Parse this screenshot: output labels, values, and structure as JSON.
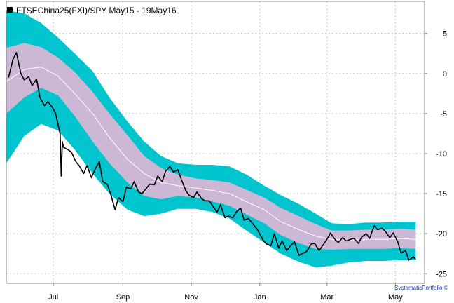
{
  "chart_data": {
    "type": "line",
    "title": "FTSEChina25(FXI)/SPY May15 - 19May16",
    "credit": "SystematicPortfolio ©",
    "colors": {
      "outer_band": "#00c5cf",
      "inner_band": "#ccb8d4",
      "median_line": "#ffffff",
      "price_line": "#000000",
      "grid": "#c8c8c8"
    },
    "x_ticks": [
      "Jul",
      "Sep",
      "Nov",
      "Jan",
      "Mar",
      "May"
    ],
    "x_tick_dates": [
      "2015-07-01",
      "2015-09-01",
      "2015-11-01",
      "2016-01-01",
      "2016-03-01",
      "2016-05-01"
    ],
    "xlim": [
      "2015-05-20",
      "2016-05-27"
    ],
    "y_ticks": [
      5,
      0,
      -5,
      -10,
      -15,
      -20,
      -25
    ],
    "ylim": [
      -26.2,
      9
    ],
    "grid": true,
    "y_axis_side": "right",
    "legend": {
      "position": "top-left",
      "label": "FTSEChina25(FXI)/SPY May15 - 19May16"
    },
    "median": {
      "x": [
        "2015-05-20",
        "2015-06-05",
        "2015-06-20",
        "2015-07-05",
        "2015-07-20",
        "2015-08-05",
        "2015-08-20",
        "2015-09-05",
        "2015-09-20",
        "2015-10-05",
        "2015-10-20",
        "2015-11-05",
        "2015-11-20",
        "2015-12-05",
        "2015-12-20",
        "2016-01-05",
        "2016-01-20",
        "2016-02-05",
        "2016-02-20",
        "2016-03-05",
        "2016-03-20",
        "2016-04-05",
        "2016-04-20",
        "2016-05-05",
        "2016-05-19"
      ],
      "y": [
        -1.0,
        0.5,
        0.8,
        -0.3,
        -2.5,
        -5.0,
        -8.0,
        -10.7,
        -12.5,
        -13.6,
        -14.0,
        -14.3,
        -14.6,
        -15.0,
        -16.0,
        -17.0,
        -18.5,
        -19.5,
        -20.3,
        -20.7,
        -20.8,
        -20.7,
        -20.7,
        -20.6,
        -20.7
      ]
    },
    "inner_band": {
      "x": [
        "2015-05-20",
        "2015-06-05",
        "2015-06-20",
        "2015-07-05",
        "2015-07-20",
        "2015-08-05",
        "2015-08-20",
        "2015-09-05",
        "2015-09-20",
        "2015-10-05",
        "2015-10-20",
        "2015-11-05",
        "2015-11-20",
        "2015-12-05",
        "2015-12-20",
        "2016-01-05",
        "2016-01-20",
        "2016-02-05",
        "2016-02-20",
        "2016-03-05",
        "2016-03-20",
        "2016-04-05",
        "2016-04-20",
        "2016-05-05",
        "2016-05-19"
      ],
      "upper": [
        3.2,
        3.8,
        3.3,
        2.0,
        0.2,
        -2.3,
        -5.0,
        -7.7,
        -10.3,
        -11.8,
        -12.6,
        -13.1,
        -13.3,
        -13.6,
        -14.5,
        -15.5,
        -16.8,
        -17.8,
        -18.8,
        -19.6,
        -19.6,
        -19.5,
        -19.5,
        -19.4,
        -19.5
      ],
      "lower": [
        -5.0,
        -3.0,
        -1.8,
        -2.7,
        -5.3,
        -8.5,
        -11.2,
        -13.6,
        -15.3,
        -15.7,
        -15.3,
        -15.5,
        -16.0,
        -16.5,
        -17.6,
        -18.7,
        -20.2,
        -21.2,
        -21.9,
        -22.0,
        -21.9,
        -21.9,
        -21.9,
        -21.8,
        -21.9
      ]
    },
    "outer_band": {
      "x": [
        "2015-05-20",
        "2015-06-05",
        "2015-06-20",
        "2015-07-05",
        "2015-07-20",
        "2015-08-05",
        "2015-08-20",
        "2015-09-05",
        "2015-09-20",
        "2015-10-05",
        "2015-10-20",
        "2015-11-05",
        "2015-11-20",
        "2015-12-05",
        "2015-12-20",
        "2016-01-05",
        "2016-01-20",
        "2016-02-05",
        "2016-02-20",
        "2016-03-05",
        "2016-03-20",
        "2016-04-05",
        "2016-04-20",
        "2016-05-05",
        "2016-05-19"
      ],
      "upper": [
        7.9,
        7.5,
        6.3,
        4.5,
        2.5,
        0.3,
        -3.0,
        -6.0,
        -8.5,
        -10.3,
        -11.2,
        -11.4,
        -11.4,
        -11.6,
        -12.6,
        -14.0,
        -15.2,
        -16.3,
        -17.5,
        -18.7,
        -18.8,
        -18.6,
        -18.6,
        -18.5,
        -18.5
      ],
      "lower": [
        -11.2,
        -7.8,
        -6.3,
        -7.1,
        -9.5,
        -12.5,
        -15.0,
        -17.0,
        -17.8,
        -17.5,
        -16.9,
        -16.9,
        -17.3,
        -18.1,
        -19.6,
        -21.1,
        -22.5,
        -23.5,
        -24.2,
        -24.0,
        -23.6,
        -23.4,
        -23.4,
        -23.3,
        -23.3
      ]
    },
    "series": [
      {
        "x": [
          "2015-05-22",
          "2015-05-26",
          "2015-05-29",
          "2015-06-02",
          "2015-06-05",
          "2015-06-09",
          "2015-06-12",
          "2015-06-16",
          "2015-06-19",
          "2015-06-23",
          "2015-06-26",
          "2015-06-30",
          "2015-07-03",
          "2015-07-07",
          "2015-07-08",
          "2015-07-09",
          "2015-07-10",
          "2015-07-14",
          "2015-07-17",
          "2015-07-21",
          "2015-07-24",
          "2015-07-28",
          "2015-07-31",
          "2015-08-04",
          "2015-08-07",
          "2015-08-11",
          "2015-08-14",
          "2015-08-18",
          "2015-08-21",
          "2015-08-25",
          "2015-08-28",
          "2015-09-01",
          "2015-09-04",
          "2015-09-08",
          "2015-09-11",
          "2015-09-15",
          "2015-09-18",
          "2015-09-22",
          "2015-09-25",
          "2015-09-29",
          "2015-10-02",
          "2015-10-06",
          "2015-10-09",
          "2015-10-13",
          "2015-10-16",
          "2015-10-20",
          "2015-10-23",
          "2015-10-27",
          "2015-10-30",
          "2015-11-03",
          "2015-11-06",
          "2015-11-10",
          "2015-11-13",
          "2015-11-17",
          "2015-11-20",
          "2015-11-24",
          "2015-11-27",
          "2015-12-01",
          "2015-12-04",
          "2015-12-08",
          "2015-12-11",
          "2015-12-15",
          "2015-12-18",
          "2015-12-22",
          "2015-12-26",
          "2015-12-30",
          "2016-01-04",
          "2016-01-07",
          "2016-01-11",
          "2016-01-14",
          "2016-01-18",
          "2016-01-21",
          "2016-01-25",
          "2016-01-28",
          "2016-02-01",
          "2016-02-05",
          "2016-02-09",
          "2016-02-12",
          "2016-02-16",
          "2016-02-19",
          "2016-02-23",
          "2016-02-26",
          "2016-03-01",
          "2016-03-04",
          "2016-03-08",
          "2016-03-11",
          "2016-03-15",
          "2016-03-18",
          "2016-03-22",
          "2016-03-25",
          "2016-03-29",
          "2016-04-01",
          "2016-04-05",
          "2016-04-08",
          "2016-04-12",
          "2016-04-15",
          "2016-04-19",
          "2016-04-22",
          "2016-04-26",
          "2016-04-29",
          "2016-05-03",
          "2016-05-06",
          "2016-05-10",
          "2016-05-13",
          "2016-05-17",
          "2016-05-19"
        ],
        "y": [
          -0.5,
          1.8,
          2.6,
          0.0,
          -0.8,
          -0.4,
          -1.5,
          -0.7,
          -3.0,
          -4.0,
          -3.5,
          -4.2,
          -5.0,
          -7.5,
          -12.8,
          -8.5,
          -9.2,
          -9.5,
          -9.8,
          -11.0,
          -11.5,
          -12.5,
          -11.5,
          -13.0,
          -12.0,
          -11.0,
          -13.5,
          -13.8,
          -15.0,
          -17.0,
          -15.5,
          -16.0,
          -14.2,
          -14.4,
          -13.5,
          -14.8,
          -15.0,
          -14.3,
          -13.8,
          -13.9,
          -12.8,
          -13.5,
          -12.2,
          -11.6,
          -12.3,
          -12.0,
          -13.2,
          -14.6,
          -15.2,
          -15.5,
          -14.8,
          -15.6,
          -15.9,
          -15.9,
          -16.5,
          -17.3,
          -16.4,
          -18.0,
          -17.8,
          -18.0,
          -17.3,
          -16.8,
          -18.3,
          -18.1,
          -18.8,
          -19.5,
          -20.8,
          -21.3,
          -21.5,
          -20.0,
          -21.8,
          -20.9,
          -22.1,
          -21.6,
          -21.0,
          -22.7,
          -22.4,
          -22.2,
          -21.3,
          -21.2,
          -22.1,
          -21.5,
          -20.7,
          -19.9,
          -20.7,
          -21.1,
          -20.5,
          -20.9,
          -20.7,
          -20.6,
          -21.2,
          -20.4,
          -20.0,
          -20.6,
          -19.0,
          -19.5,
          -19.3,
          -19.7,
          -20.5,
          -19.9,
          -21.0,
          -22.4,
          -22.1,
          -23.3,
          -22.9,
          -23.2
        ]
      }
    ]
  }
}
